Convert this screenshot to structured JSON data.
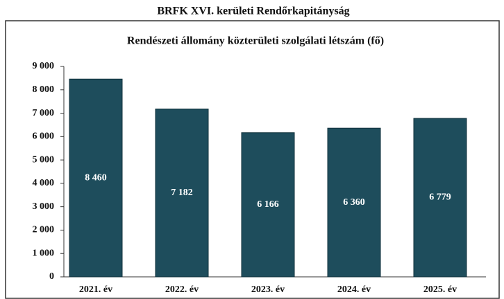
{
  "chart_data": {
    "type": "bar",
    "header": "BRFK XVI. kerületi Rendőrkapitányság",
    "title": "Rendészeti állomány közterületi szolgálati létszám (fő)",
    "categories": [
      "2021. év",
      "2022. év",
      "2023. év",
      "2024. év",
      "2025. év"
    ],
    "values": [
      8460,
      7182,
      6166,
      6360,
      6779
    ],
    "value_labels": [
      "8 460",
      "7 182",
      "6 166",
      "6 360",
      "6 779"
    ],
    "color": "#1e4d5c",
    "ylim": [
      0,
      9000
    ],
    "yticks": [
      0,
      {
        "value": 1000,
        "label": "1 000"
      },
      {
        "value": 2000,
        "label": "2 000"
      },
      {
        "value": 3000,
        "label": "3 000"
      },
      {
        "value": 4000,
        "label": "4 000"
      },
      {
        "value": 5000,
        "label": "5 000"
      },
      {
        "value": 6000,
        "label": "6 000"
      },
      {
        "value": 7000,
        "label": "7 000"
      },
      {
        "value": 8000,
        "label": "8 000"
      },
      {
        "value": 9000,
        "label": "9 000"
      }
    ],
    "grid": false
  }
}
